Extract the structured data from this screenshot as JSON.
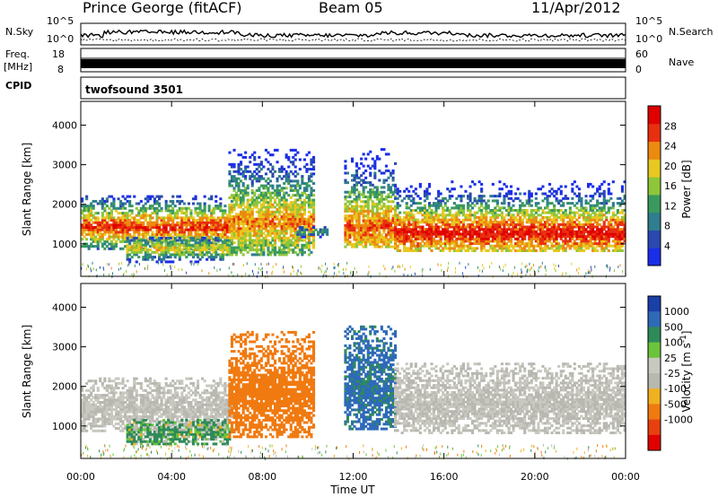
{
  "header": {
    "station": "Prince George (fitACF)",
    "beam": "Beam 05",
    "date": "11/Apr/2012"
  },
  "strip": {
    "nsky_label": "N.Sky",
    "nsky_top": "10^5",
    "nsky_bottom": "10^0",
    "nsearch_label": "N.Search",
    "nsearch_top": "10^5",
    "nsearch_bottom": "10^0",
    "freq_label": "Freq.",
    "freq_unit": "[MHz]",
    "freq_top": "18",
    "freq_bottom": "8",
    "nave_label": "Nave",
    "nave_top": "60",
    "nave_bottom": "0",
    "cpid_label": "CPID",
    "cpid_value": "twofsound 3501"
  },
  "colors": {
    "power_scale": [
      "#1a2ee8",
      "#2a48b0",
      "#2f7d8e",
      "#3a9a5e",
      "#8ec63a",
      "#e8c820",
      "#ec8a10",
      "#e83010",
      "#e00000"
    ],
    "velocity_scale": [
      "#1a3fa8",
      "#2e6ab8",
      "#2f8a5a",
      "#6cc43c",
      "#c8c8c0",
      "#b8b8b0",
      "#f0b020",
      "#f07a10",
      "#e84010",
      "#e00000"
    ]
  },
  "chart_data": [
    {
      "type": "heatmap",
      "panel": "power",
      "x_label": "Time UT",
      "ylabel": "Slant Range [km]",
      "x_ticks": [
        "00:00",
        "04:00",
        "08:00",
        "12:00",
        "16:00",
        "20:00",
        "00:00"
      ],
      "x_range_hours": [
        0,
        24
      ],
      "ylim": [
        180,
        4600
      ],
      "y_ticks": [
        1000,
        2000,
        3000,
        4000
      ],
      "colorbar": {
        "label": "Power [dB]",
        "range": [
          0,
          32
        ],
        "ticks": [
          4,
          8,
          12,
          16,
          20,
          24,
          28
        ]
      },
      "echo_regions": [
        {
          "t_start": 0.0,
          "t_end": 6.6,
          "r_low": 850,
          "r_high": 2200,
          "peak_range": 1400,
          "peak_power": 28
        },
        {
          "t_start": 2.0,
          "t_end": 6.5,
          "r_low": 520,
          "r_high": 1150,
          "peak_range": 850,
          "peak_power": 20
        },
        {
          "t_start": 6.5,
          "t_end": 10.2,
          "r_low": 700,
          "r_high": 3400,
          "peak_range": 1500,
          "peak_power": 24
        },
        {
          "t_start": 9.5,
          "t_end": 10.8,
          "r_low": 1150,
          "r_high": 1400,
          "peak_range": 1280,
          "peak_power": 12
        },
        {
          "t_start": 11.6,
          "t_end": 13.8,
          "r_low": 900,
          "r_high": 3500,
          "peak_range": 1400,
          "peak_power": 26
        },
        {
          "t_start": 13.8,
          "t_end": 24.0,
          "r_low": 800,
          "r_high": 2600,
          "peak_range": 1250,
          "peak_power": 30
        }
      ]
    },
    {
      "type": "heatmap",
      "panel": "velocity",
      "x_label": "Time UT",
      "ylabel": "Slant Range [km]",
      "x_ticks": [
        "00:00",
        "04:00",
        "08:00",
        "12:00",
        "16:00",
        "20:00",
        "00:00"
      ],
      "x_range_hours": [
        0,
        24
      ],
      "ylim": [
        180,
        4600
      ],
      "y_ticks": [
        1000,
        2000,
        3000,
        4000
      ],
      "colorbar": {
        "label": "Velocity [m s^-1]",
        "ticks": [
          "1000",
          "500",
          "100",
          "25",
          "-25",
          "-100",
          "-500",
          "-1000"
        ]
      },
      "echo_regions": [
        {
          "t_start": 0.0,
          "t_end": 6.6,
          "r_low": 850,
          "r_high": 2200,
          "velocity": 0
        },
        {
          "t_start": 2.0,
          "t_end": 6.5,
          "r_low": 520,
          "r_high": 1150,
          "velocity": 150
        },
        {
          "t_start": 6.5,
          "t_end": 10.2,
          "r_low": 700,
          "r_high": 3400,
          "velocity": -300
        },
        {
          "t_start": 11.6,
          "t_end": 13.8,
          "r_low": 900,
          "r_high": 3500,
          "velocity": 600
        },
        {
          "t_start": 13.8,
          "t_end": 24.0,
          "r_low": 800,
          "r_high": 2600,
          "velocity": 0
        }
      ]
    }
  ]
}
